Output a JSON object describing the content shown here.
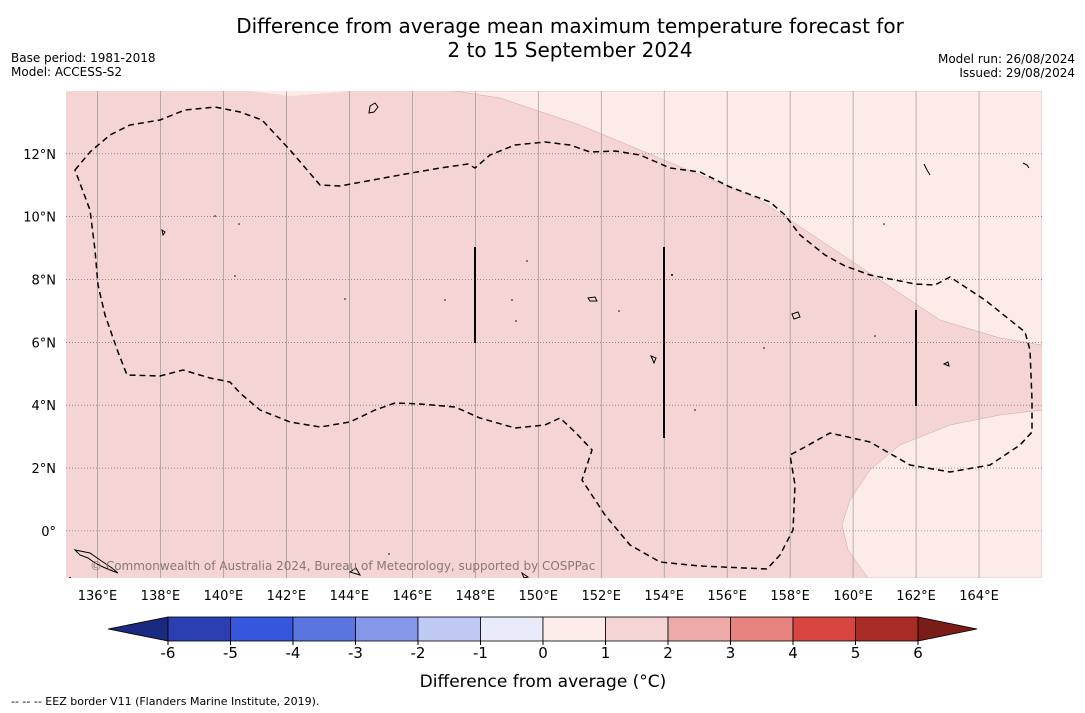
{
  "title_line1": "Difference from average mean maximum temperature forecast for",
  "title_line2": "2 to 15 September 2024",
  "meta_left": [
    "Base period: 1981-2018",
    "Model: ACCESS-S2"
  ],
  "meta_right": [
    "Model run: 26/08/2024",
    "Issued: 29/08/2024"
  ],
  "map": {
    "lon_range": [
      135,
      166
    ],
    "lat_range": [
      -1.5,
      14
    ],
    "lon_ticks": [
      "136°E",
      "138°E",
      "140°E",
      "142°E",
      "144°E",
      "146°E",
      "148°E",
      "150°E",
      "152°E",
      "154°E",
      "156°E",
      "158°E",
      "160°E",
      "162°E",
      "164°E"
    ],
    "lat_ticks": [
      "12°N",
      "10°N",
      "8°N",
      "6°N",
      "4°N",
      "2°N",
      "0°"
    ],
    "watermark": "© Commonwealth of Australia 2024, Bureau of Meteorology, supported by COSPPac",
    "colors": {
      "class_1_2": "#f5d5d3",
      "class_0_1": "#fcebe9"
    }
  },
  "colorbar": {
    "label": "Difference from average (°C)",
    "ticks": [
      "-6",
      "-5",
      "-4",
      "-3",
      "-2",
      "-1",
      "0",
      "1",
      "2",
      "3",
      "4",
      "5",
      "6"
    ],
    "colors": [
      "#1a2a80",
      "#2b3fb0",
      "#3457dd",
      "#5a75e0",
      "#8597e8",
      "#c0c8f4",
      "#e9ebfb",
      "#fcebe9",
      "#f5d5d3",
      "#eeaaa6",
      "#e6837e",
      "#d9463f",
      "#a82c26",
      "#7a1c18"
    ]
  },
  "footnote": "-- -- -- EEZ border V11 (Flanders Marine Institute, 2019)."
}
